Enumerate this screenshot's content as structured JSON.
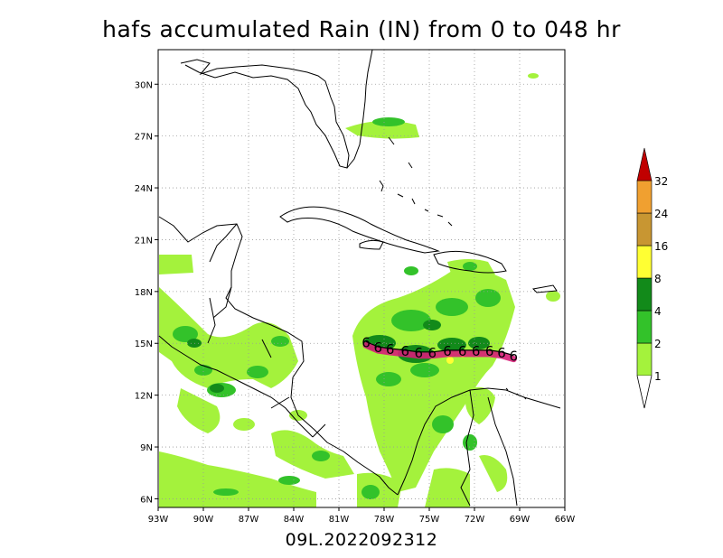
{
  "title": "hafs accumulated Rain (IN) from 0 to 048 hr",
  "footer": "09L.2022092312",
  "map": {
    "lon_labels": [
      "93W",
      "90W",
      "87W",
      "84W",
      "81W",
      "78W",
      "75W",
      "72W",
      "69W",
      "66W"
    ],
    "lat_labels": [
      "6N",
      "9N",
      "12N",
      "15N",
      "18N",
      "21N",
      "24N",
      "27N",
      "30N"
    ],
    "lon_range": [
      -93,
      -66
    ],
    "lat_range": [
      5.5,
      32
    ],
    "grid": "dotted",
    "storm_symbol": "6"
  },
  "colorbar": {
    "labels": [
      "1",
      "2",
      "4",
      "8",
      "16",
      "24",
      "32"
    ],
    "colors": {
      "c1": "#a4f23c",
      "c2": "#33c22a",
      "c4": "#128a1a",
      "c8": "#ffff33",
      "c16": "#c89632",
      "c24": "#f0a030",
      "c32": "#c00000"
    }
  },
  "track": {
    "lons": [
      -79.2,
      -78.4,
      -77.6,
      -76.6,
      -75.7,
      -74.8,
      -73.8,
      -72.8,
      -71.9,
      -71.0,
      -70.2,
      -69.4
    ],
    "lats": [
      15.1,
      14.8,
      14.7,
      14.6,
      14.5,
      14.5,
      14.6,
      14.6,
      14.6,
      14.6,
      14.5,
      14.3
    ]
  }
}
